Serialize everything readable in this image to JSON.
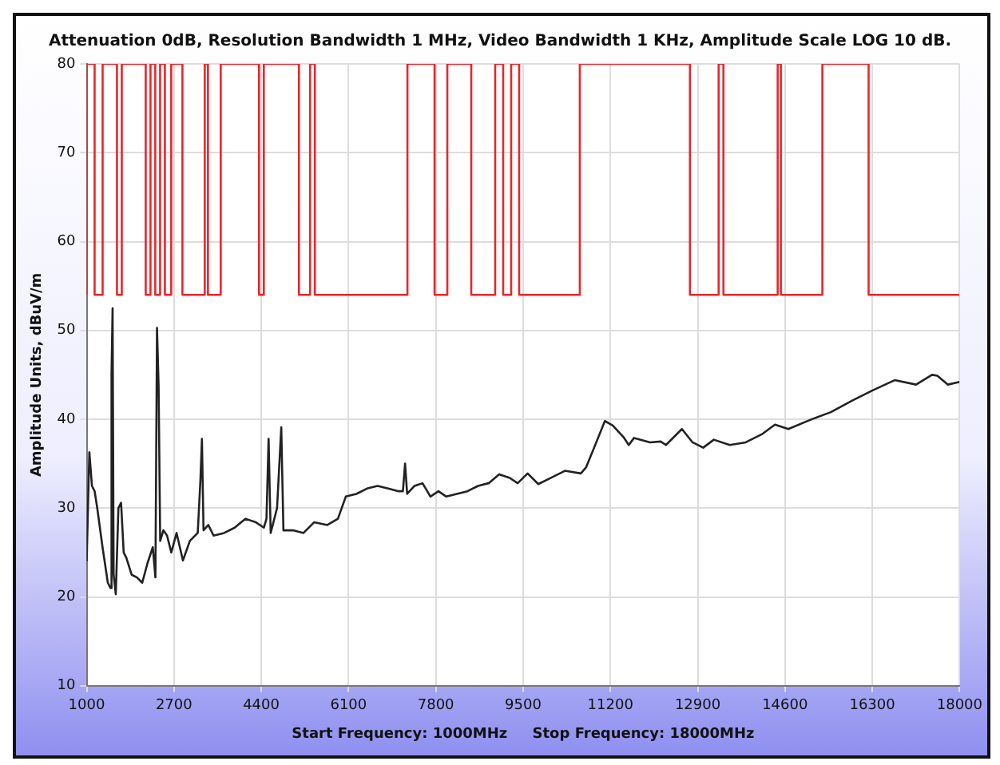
{
  "chart_data": {
    "type": "line",
    "title": "Attenuation 0dB, Resolution Bandwidth 1 MHz, Video Bandwidth 1 KHz, Amplitude Scale LOG 10 dB.",
    "xlabel": "Start Frequency: 1000MHz     Stop Frequency: 18000MHz",
    "ylabel": "Amplitude Units, dBuV/m",
    "xlim": [
      1000,
      18000
    ],
    "xticks": [
      1000,
      2700,
      4400,
      6100,
      7800,
      9500,
      11200,
      12900,
      14600,
      16300,
      18000
    ],
    "ylim": [
      10,
      80
    ],
    "yticks": [
      10,
      20,
      30,
      40,
      50,
      60,
      70,
      80
    ],
    "grid": true,
    "legend": false,
    "marker": "none",
    "series": [
      {
        "type": "step",
        "color": "#e8262a",
        "x": [
          1000,
          1155,
          1311,
          1590,
          1684,
          2150,
          2243,
          2336,
          2430,
          2523,
          2647,
          2865,
          3300,
          3362,
          3611,
          4357,
          4450,
          5134,
          5351,
          5444,
          7247,
          7775,
          8024,
          8490,
          8956,
          9112,
          9267,
          9423,
          10604,
          12749,
          13308,
          13401,
          14458,
          14520,
          15328,
          16229,
          17721,
          18000
        ],
        "values": [
          54,
          80,
          54,
          80,
          54,
          80,
          54,
          80,
          54,
          80,
          54,
          80,
          54,
          80,
          54,
          80,
          54,
          80,
          54,
          80,
          54,
          80,
          54,
          80,
          54,
          80,
          54,
          80,
          54,
          80,
          54,
          80,
          54,
          80,
          54,
          80,
          54,
          54
        ]
      },
      {
        "type": "line",
        "color": "#222222",
        "x": [
          1000,
          1052,
          1103,
          1155,
          1206,
          1309,
          1412,
          1464,
          1484,
          1505,
          1525,
          1567,
          1618,
          1670,
          1721,
          1773,
          1876,
          1979,
          2082,
          2185,
          2288,
          2339,
          2370,
          2401,
          2432,
          2494,
          2566,
          2648,
          2751,
          2875,
          3009,
          3163,
          3215,
          3245,
          3276,
          3369,
          3472,
          3678,
          3884,
          4090,
          4296,
          4451,
          4502,
          4543,
          4584,
          4708,
          4790,
          4832,
          5017,
          5223,
          5429,
          5687,
          5893,
          6047,
          6253,
          6459,
          6665,
          6871,
          7077,
          7159,
          7201,
          7242,
          7386,
          7541,
          7695,
          7850,
          8004,
          8210,
          8416,
          8622,
          8828,
          9034,
          9240,
          9394,
          9588,
          9796,
          10003,
          10314,
          10625,
          10728,
          10883,
          11092,
          11247,
          11454,
          11558,
          11661,
          11972,
          12179,
          12282,
          12593,
          12800,
          13007,
          13214,
          13525,
          13836,
          14147,
          14405,
          14666,
          15079,
          15493,
          15910,
          16322,
          16736,
          17153,
          17464,
          17566,
          17774,
          18000
        ],
        "values": [
          24,
          36.3,
          32.5,
          31.9,
          30,
          25.6,
          21.6,
          21,
          45,
          52.5,
          22.5,
          20.3,
          30,
          30.6,
          25,
          24.4,
          22.5,
          22.2,
          21.6,
          23.8,
          25.6,
          22.2,
          50.3,
          43.8,
          26.3,
          27.5,
          26.9,
          25,
          27.2,
          24.1,
          26.3,
          27.2,
          33.1,
          37.8,
          27.5,
          28.1,
          26.9,
          27.2,
          27.8,
          28.8,
          28.4,
          27.8,
          28.8,
          37.8,
          27.2,
          30,
          39.1,
          27.5,
          27.5,
          27.2,
          28.4,
          28.1,
          28.8,
          31.3,
          31.6,
          32.2,
          32.5,
          32.2,
          31.9,
          31.9,
          35,
          31.6,
          32.5,
          32.8,
          31.3,
          31.9,
          31.3,
          31.6,
          31.9,
          32.5,
          32.8,
          33.8,
          33.4,
          32.8,
          33.9,
          32.7,
          33.3,
          34.2,
          33.9,
          34.6,
          36.8,
          39.8,
          39.3,
          38,
          37.1,
          37.9,
          37.4,
          37.5,
          37.1,
          38.9,
          37.4,
          36.8,
          37.7,
          37.1,
          37.4,
          38.3,
          39.4,
          38.9,
          39.9,
          40.8,
          42.1,
          43.3,
          44.4,
          43.9,
          45,
          44.9,
          43.9,
          44.2
        ]
      }
    ]
  }
}
